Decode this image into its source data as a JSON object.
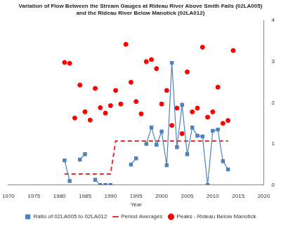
{
  "chart_data": {
    "type": "scatter",
    "title": [
      "Variation of Flow Between the Stream Gauges at Rideau River Above Smith Falls (02LA005)",
      "and the Rideau River Below Manotick (02LA012)"
    ],
    "xlabel": "Year",
    "xlim": [
      1970,
      2020
    ],
    "xticks": [
      1970,
      1975,
      1980,
      1985,
      1990,
      1995,
      2000,
      2005,
      2010,
      2015,
      2020
    ],
    "ylim": [
      0,
      4
    ],
    "yticks": [
      0,
      1,
      2,
      3,
      4
    ],
    "grid": false,
    "legend": "bottom",
    "series": [
      {
        "name": "Ratio of 02LA005 to 02LA012",
        "color": "#4f81bd",
        "type": "line",
        "marker": "square",
        "x": [
          1981,
          1982,
          1983,
          1984,
          1985,
          1986,
          1987,
          1988,
          1989,
          1990,
          1991,
          1992,
          1993,
          1994,
          1995,
          1996,
          1997,
          1998,
          1999,
          2000,
          2001,
          2002,
          2003,
          2004,
          2005,
          2006,
          2007,
          2008,
          2009,
          2010,
          2011,
          2012,
          2013
        ],
        "values": [
          0.6,
          0.1,
          null,
          0.62,
          0.75,
          null,
          0.13,
          0,
          0,
          0,
          null,
          null,
          null,
          0.5,
          0.65,
          null,
          1.0,
          1.4,
          0.98,
          1.3,
          0.48,
          2.97,
          0.92,
          1.95,
          0.75,
          1.4,
          1.2,
          1.18,
          0,
          1.32,
          1.35,
          0.58,
          0.38
        ]
      },
      {
        "name": "Period Averages",
        "color": "#e0302c",
        "type": "line",
        "line_style": "dashed",
        "x": [
          1981,
          1990,
          1991,
          2013
        ],
        "values": [
          0.27,
          0.27,
          1.07,
          1.07
        ]
      },
      {
        "name": "Peaks - Rideau Below Manotick",
        "color": "#ff0000",
        "type": "scatter",
        "marker": "circle",
        "x": [
          1981,
          1982,
          1983,
          1984,
          1985,
          1986,
          1987,
          1988,
          1989,
          1990,
          1991,
          1992,
          1993,
          1994,
          1995,
          1996,
          1997,
          1998,
          1999,
          2000,
          2001,
          2002,
          2003,
          2004,
          2005,
          2006,
          2007,
          2008,
          2009,
          2010,
          2011,
          2012,
          2013,
          2014
        ],
        "values": [
          2.98,
          2.96,
          1.63,
          2.43,
          1.78,
          1.58,
          2.35,
          1.88,
          1.75,
          1.93,
          2.3,
          1.97,
          3.42,
          2.5,
          2.03,
          1.73,
          3.0,
          3.05,
          2.83,
          1.97,
          2.3,
          1.45,
          1.87,
          1.25,
          2.75,
          1.78,
          1.87,
          3.35,
          1.65,
          1.78,
          2.38,
          1.5,
          1.57,
          3.27
        ]
      }
    ]
  }
}
